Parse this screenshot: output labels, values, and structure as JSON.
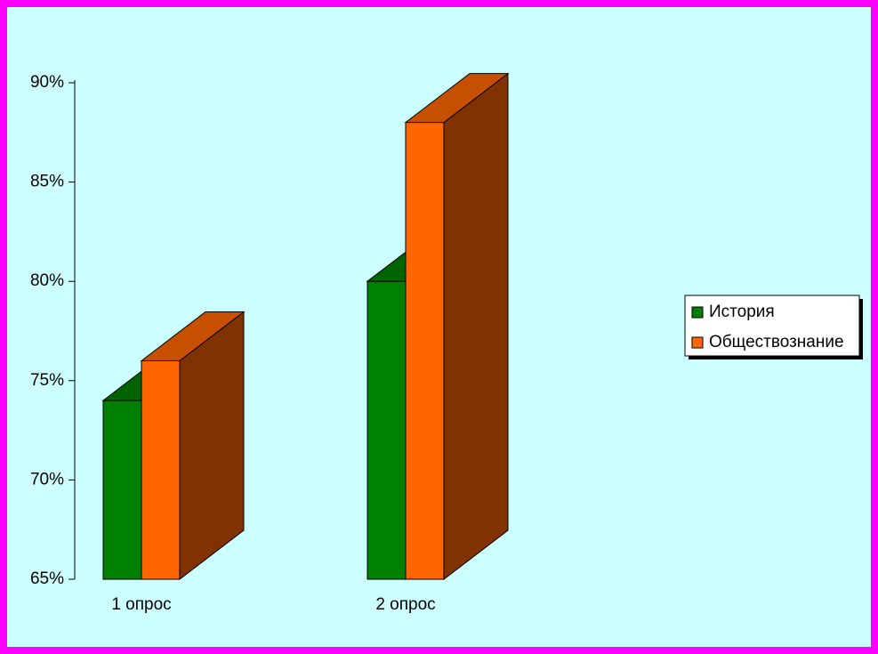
{
  "chart_data": {
    "type": "bar3d",
    "categories": [
      "1 опрос",
      "2 опрос"
    ],
    "series": [
      {
        "name": "История",
        "color": "#008000",
        "values": [
          74,
          80
        ]
      },
      {
        "name": "Обществознание",
        "color": "#ff6600",
        "values": [
          76,
          88
        ]
      }
    ],
    "ylim": [
      65,
      90
    ],
    "yticks": [
      {
        "value": 65,
        "label": "65%"
      },
      {
        "value": 70,
        "label": "70%"
      },
      {
        "value": 75,
        "label": "75%"
      },
      {
        "value": 80,
        "label": "80%"
      },
      {
        "value": 85,
        "label": "85%"
      },
      {
        "value": 90,
        "label": "90%"
      }
    ],
    "legend": "right"
  }
}
